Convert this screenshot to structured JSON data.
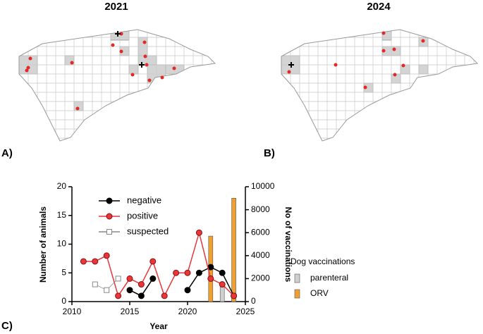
{
  "maps": [
    {
      "title": "2021",
      "label": "A)"
    },
    {
      "title": "2024",
      "label": "B)"
    }
  ],
  "chart_data": {
    "type": "line",
    "label": "C)",
    "xlabel": "Year",
    "ylabel": "Number of animals",
    "y2label": "No of vaccinations",
    "legend_title": "Dog vaccinations",
    "x": [
      2011,
      2012,
      2013,
      2014,
      2015,
      2016,
      2017,
      2018,
      2019,
      2020,
      2021,
      2022,
      2023,
      2024
    ],
    "series": [
      {
        "name": "negative",
        "type": "line",
        "color": "#000000",
        "marker": "circle",
        "values": [
          null,
          null,
          null,
          null,
          2,
          1,
          4,
          null,
          null,
          2,
          5,
          6,
          5,
          1
        ]
      },
      {
        "name": "positive",
        "type": "line",
        "color": "#e8363a",
        "marker": "circle",
        "values": [
          7,
          7,
          8,
          1,
          4,
          3,
          7,
          1,
          5,
          5,
          12,
          4,
          3,
          1
        ]
      },
      {
        "name": "suspected",
        "type": "line",
        "color": "#888888",
        "marker": "square",
        "values": [
          null,
          3,
          2,
          4,
          null,
          null,
          null,
          null,
          null,
          null,
          null,
          null,
          null,
          null
        ]
      },
      {
        "name": "parenteral",
        "type": "bar",
        "axis": "y2",
        "color": "#cfcfcf",
        "values": [
          null,
          null,
          null,
          null,
          null,
          null,
          null,
          null,
          null,
          null,
          null,
          null,
          1400,
          600
        ]
      },
      {
        "name": "ORV",
        "type": "bar",
        "axis": "y2",
        "color": "#f0a030",
        "values": [
          null,
          null,
          null,
          null,
          null,
          null,
          null,
          null,
          null,
          null,
          null,
          5700,
          null,
          9000
        ]
      }
    ],
    "xlim": [
      2010,
      2025
    ],
    "xticks": [
      2010,
      2015,
      2020,
      2025
    ],
    "ylim": [
      0,
      20
    ],
    "yticks": [
      0,
      5,
      10,
      15,
      20
    ],
    "y2lim": [
      0,
      10000
    ],
    "y2ticks": [
      0,
      2000,
      4000,
      6000,
      8000,
      10000
    ]
  }
}
